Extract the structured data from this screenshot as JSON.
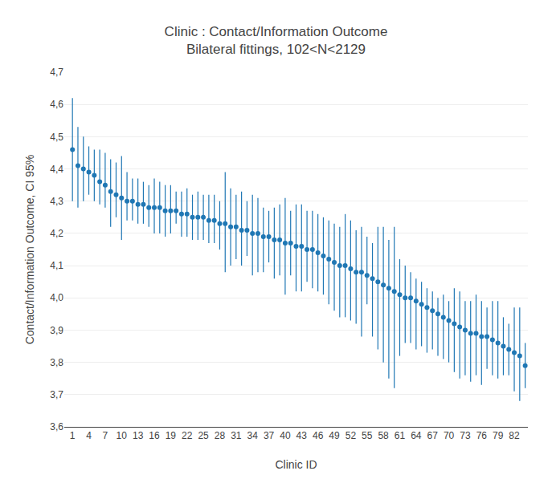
{
  "chart_data": {
    "type": "scatter",
    "marker": "circle",
    "title": "Clinic : Contact/Information Outcome",
    "subtitle": "Bilateral fittings, 102<N<2129",
    "xlabel": "Clinic ID",
    "ylabel": "Contact/Information Outcome, CI 95%",
    "x": [
      1,
      2,
      3,
      4,
      5,
      6,
      7,
      8,
      9,
      10,
      11,
      12,
      13,
      14,
      15,
      16,
      17,
      18,
      19,
      20,
      21,
      22,
      23,
      24,
      25,
      26,
      27,
      28,
      29,
      30,
      31,
      32,
      33,
      34,
      35,
      36,
      37,
      38,
      39,
      40,
      41,
      42,
      43,
      44,
      45,
      46,
      47,
      48,
      49,
      50,
      51,
      52,
      53,
      54,
      55,
      56,
      57,
      58,
      59,
      60,
      61,
      62,
      63,
      64,
      65,
      66,
      67,
      68,
      69,
      70,
      71,
      72,
      73,
      74,
      75,
      76,
      77,
      78,
      79,
      80,
      81,
      82,
      83,
      84
    ],
    "values": [
      4.46,
      4.41,
      4.4,
      4.39,
      4.38,
      4.36,
      4.35,
      4.33,
      4.32,
      4.31,
      4.3,
      4.3,
      4.29,
      4.29,
      4.28,
      4.28,
      4.28,
      4.27,
      4.27,
      4.27,
      4.26,
      4.26,
      4.25,
      4.25,
      4.25,
      4.24,
      4.24,
      4.23,
      4.23,
      4.22,
      4.22,
      4.21,
      4.21,
      4.2,
      4.2,
      4.19,
      4.19,
      4.18,
      4.18,
      4.17,
      4.17,
      4.16,
      4.16,
      4.15,
      4.15,
      4.14,
      4.13,
      4.12,
      4.11,
      4.1,
      4.1,
      4.09,
      4.08,
      4.08,
      4.07,
      4.06,
      4.05,
      4.04,
      4.03,
      4.02,
      4.01,
      4.0,
      4.0,
      3.99,
      3.98,
      3.97,
      3.96,
      3.95,
      3.94,
      3.93,
      3.92,
      3.91,
      3.9,
      3.89,
      3.89,
      3.88,
      3.88,
      3.87,
      3.86,
      3.85,
      3.84,
      3.83,
      3.82,
      3.79
    ],
    "ci_lower": [
      4.3,
      4.28,
      4.3,
      4.32,
      4.3,
      4.29,
      4.28,
      4.22,
      4.25,
      4.18,
      4.24,
      4.24,
      4.23,
      4.23,
      4.22,
      4.2,
      4.2,
      4.19,
      4.2,
      4.23,
      4.19,
      4.19,
      4.18,
      4.18,
      4.18,
      4.17,
      4.17,
      4.15,
      4.08,
      4.1,
      4.12,
      4.1,
      4.13,
      4.07,
      4.08,
      4.08,
      4.11,
      4.06,
      4.07,
      4.01,
      4.07,
      4.02,
      4.02,
      4.05,
      4.03,
      4.02,
      4.01,
      3.98,
      3.96,
      3.94,
      3.94,
      3.93,
      3.92,
      3.88,
      3.98,
      3.88,
      3.84,
      3.8,
      3.75,
      3.72,
      3.82,
      3.86,
      3.86,
      3.84,
      3.85,
      3.83,
      3.84,
      3.82,
      3.81,
      3.8,
      3.77,
      3.75,
      3.76,
      3.74,
      3.76,
      3.73,
      3.78,
      3.76,
      3.75,
      3.76,
      3.76,
      3.71,
      3.68,
      3.72
    ],
    "ci_upper": [
      4.62,
      4.53,
      4.5,
      4.47,
      4.46,
      4.46,
      4.45,
      4.43,
      4.42,
      4.44,
      4.39,
      4.37,
      4.37,
      4.36,
      4.35,
      4.37,
      4.36,
      4.35,
      4.35,
      4.33,
      4.33,
      4.34,
      4.32,
      4.33,
      4.32,
      4.32,
      4.32,
      4.3,
      4.39,
      4.34,
      4.32,
      4.33,
      4.3,
      4.32,
      4.31,
      4.28,
      4.27,
      4.28,
      4.29,
      4.31,
      4.27,
      4.29,
      4.29,
      4.27,
      4.27,
      4.26,
      4.25,
      4.24,
      4.23,
      4.22,
      4.26,
      4.24,
      4.21,
      4.22,
      4.19,
      4.17,
      4.22,
      4.22,
      4.18,
      4.22,
      4.12,
      4.1,
      4.08,
      4.06,
      4.05,
      4.03,
      4.02,
      4.0,
      4.01,
      3.99,
      4.03,
      4.02,
      3.99,
      3.99,
      4.01,
      3.99,
      3.97,
      3.99,
      3.99,
      3.94,
      3.92,
      3.97,
      3.97,
      3.86
    ],
    "xlim": [
      -0.5,
      84.5
    ],
    "xticks": [
      1,
      4,
      7,
      10,
      13,
      16,
      19,
      22,
      25,
      28,
      31,
      34,
      37,
      40,
      43,
      46,
      49,
      52,
      55,
      58,
      61,
      64,
      67,
      70,
      73,
      76,
      79,
      82
    ],
    "ylim": [
      3.6,
      4.7
    ],
    "yticks": [
      {
        "value": 3.6,
        "label": "3,6"
      },
      {
        "value": 3.7,
        "label": "3,7"
      },
      {
        "value": 3.8,
        "label": "3,8"
      },
      {
        "value": 3.9,
        "label": "3,9"
      },
      {
        "value": 4.0,
        "label": "4,0"
      },
      {
        "value": 4.1,
        "label": "4,1"
      },
      {
        "value": 4.2,
        "label": "4,2"
      },
      {
        "value": 4.3,
        "label": "4,3"
      },
      {
        "value": 4.4,
        "label": "4,4"
      },
      {
        "value": 4.5,
        "label": "4,5"
      },
      {
        "value": 4.6,
        "label": "4,6"
      },
      {
        "value": 4.7,
        "label": "4,7"
      }
    ],
    "grid": "y"
  }
}
